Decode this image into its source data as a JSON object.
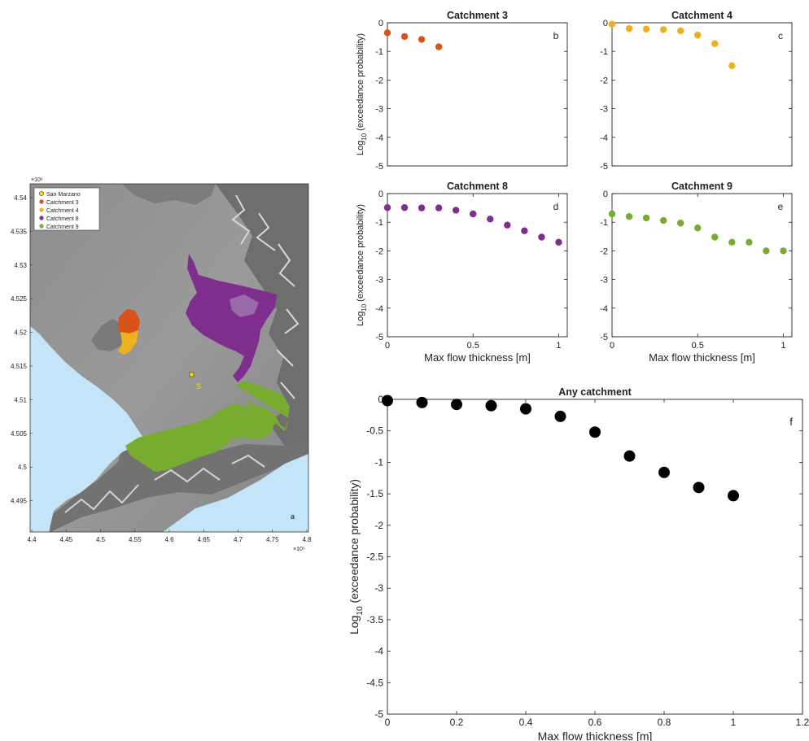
{
  "map": {
    "panel_letter": "a",
    "x_exponent": "×10⁵",
    "y_exponent": "×10⁶",
    "x_ticks": [
      "4.4",
      "4.45",
      "4.5",
      "4.55",
      "4.6",
      "4.65",
      "4.7",
      "4.75",
      "4.8"
    ],
    "y_ticks": [
      "4.54",
      "4.535",
      "4.53",
      "4.525",
      "4.52",
      "4.515",
      "4.51",
      "4.505",
      "4.5",
      "4.495"
    ],
    "marker_label": "S",
    "legend": [
      {
        "label": "San Marzano",
        "color": "#f4e400"
      },
      {
        "label": "Catchment 3",
        "color": "#d95319"
      },
      {
        "label": "Catchment 4",
        "color": "#edb120"
      },
      {
        "label": "Catchment 8",
        "color": "#7e2f8e"
      },
      {
        "label": "Catchment 9",
        "color": "#77ac30"
      }
    ],
    "colors": {
      "sea": "#c4e4f8",
      "catchment3": "#d95319",
      "catchment4": "#edb120",
      "catchment8": "#7e2f8e",
      "catchment9": "#77ac30",
      "marker": "#f4e400"
    }
  },
  "chart_data": [
    {
      "panel": "b",
      "type": "scatter",
      "title": "Catchment 3",
      "ylabel_main": "Log",
      "ylabel_sub": "10",
      "ylabel_rest": " (exceedance probability)",
      "xlabel": "",
      "xlim": [
        0,
        1.05
      ],
      "ylim": [
        -5,
        0
      ],
      "x_ticks": [],
      "y_ticks": [
        0,
        -1,
        -2,
        -3,
        -4,
        -5
      ],
      "color": "#d95319",
      "x": [
        0,
        0.1,
        0.2,
        0.3
      ],
      "y": [
        -0.35,
        -0.48,
        -0.58,
        -0.84
      ]
    },
    {
      "panel": "c",
      "type": "scatter",
      "title": "Catchment 4",
      "xlabel": "",
      "xlim": [
        0,
        1.05
      ],
      "ylim": [
        -5,
        0
      ],
      "x_ticks": [],
      "y_ticks": [
        0,
        -1,
        -2,
        -3,
        -4,
        -5
      ],
      "color": "#edb120",
      "x": [
        0,
        0.1,
        0.2,
        0.3,
        0.4,
        0.5,
        0.6,
        0.7
      ],
      "y": [
        -0.05,
        -0.2,
        -0.22,
        -0.24,
        -0.28,
        -0.43,
        -0.73,
        -1.5
      ]
    },
    {
      "panel": "d",
      "type": "scatter",
      "title": "Catchment 8",
      "ylabel_main": "Log",
      "ylabel_sub": "10",
      "ylabel_rest": " (exceedance probability)",
      "xlabel": "Max flow thickness [m]",
      "xlim": [
        0,
        1.05
      ],
      "ylim": [
        -5,
        0
      ],
      "x_ticks": [
        0,
        0.5,
        1
      ],
      "y_ticks": [
        0,
        -1,
        -2,
        -3,
        -4,
        -5
      ],
      "color": "#7e2f8e",
      "x": [
        0,
        0.1,
        0.2,
        0.3,
        0.4,
        0.5,
        0.6,
        0.7,
        0.8,
        0.9,
        1.0
      ],
      "y": [
        -0.49,
        -0.49,
        -0.5,
        -0.5,
        -0.58,
        -0.71,
        -0.89,
        -1.1,
        -1.3,
        -1.52,
        -1.7
      ]
    },
    {
      "panel": "e",
      "type": "scatter",
      "title": "Catchment 9",
      "xlabel": "Max flow thickness [m]",
      "xlim": [
        0,
        1.05
      ],
      "ylim": [
        -5,
        0
      ],
      "x_ticks": [
        0,
        0.5,
        1
      ],
      "y_ticks": [
        0,
        -1,
        -2,
        -3,
        -4,
        -5
      ],
      "color": "#77ac30",
      "x": [
        0,
        0.1,
        0.2,
        0.3,
        0.4,
        0.5,
        0.6,
        0.7,
        0.8,
        0.9,
        1.0
      ],
      "y": [
        -0.71,
        -0.8,
        -0.85,
        -0.94,
        -1.03,
        -1.2,
        -1.52,
        -1.7,
        -1.7,
        -2.0,
        -2.0
      ]
    },
    {
      "panel": "f",
      "type": "scatter",
      "title": "Any catchment",
      "ylabel_main": "Log",
      "ylabel_sub": "10",
      "ylabel_rest": " (exceedance probability)",
      "xlabel": "Max flow thickness [m]",
      "xlim": [
        0,
        1.2
      ],
      "ylim": [
        -5,
        0
      ],
      "x_ticks": [
        0,
        0.2,
        0.4,
        0.6,
        0.8,
        1,
        1.2
      ],
      "y_ticks": [
        0,
        -0.5,
        -1,
        -1.5,
        -2,
        -2.5,
        -3,
        -3.5,
        -4,
        -4.5,
        -5
      ],
      "color": "#000000",
      "x": [
        0,
        0.1,
        0.2,
        0.3,
        0.4,
        0.5,
        0.6,
        0.7,
        0.8,
        0.9,
        1.0
      ],
      "y": [
        -0.02,
        -0.05,
        -0.08,
        -0.1,
        -0.15,
        -0.27,
        -0.52,
        -0.9,
        -1.16,
        -1.4,
        -1.53
      ]
    }
  ]
}
